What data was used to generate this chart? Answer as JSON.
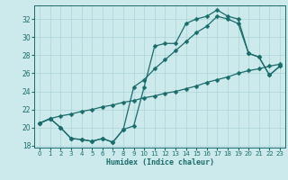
{
  "xlabel": "Humidex (Indice chaleur)",
  "bg_color": "#cce9eb",
  "grid_color": "#aad4d8",
  "line_color": "#1a6b6b",
  "xlim": [
    -0.5,
    23.5
  ],
  "ylim": [
    17.8,
    33.5
  ],
  "yticks": [
    18,
    20,
    22,
    24,
    26,
    28,
    30,
    32
  ],
  "xticks": [
    0,
    1,
    2,
    3,
    4,
    5,
    6,
    7,
    8,
    9,
    10,
    11,
    12,
    13,
    14,
    15,
    16,
    17,
    18,
    19,
    20,
    21,
    22,
    23
  ],
  "line1_x": [
    0,
    1,
    2,
    3,
    4,
    5,
    6,
    7,
    8,
    9,
    10,
    11,
    12,
    13,
    14,
    15,
    16,
    17,
    18,
    19,
    20,
    21,
    22,
    23
  ],
  "line1_y": [
    20.5,
    21.0,
    20.0,
    18.8,
    18.7,
    18.5,
    18.8,
    18.4,
    19.8,
    20.2,
    24.5,
    29.0,
    29.3,
    29.3,
    31.5,
    32.0,
    32.3,
    33.0,
    32.3,
    32.0,
    28.2,
    27.8,
    25.8,
    26.8
  ],
  "line2_x": [
    0,
    1,
    2,
    3,
    4,
    5,
    6,
    7,
    8,
    9,
    10,
    11,
    12,
    13,
    14,
    15,
    16,
    17,
    18,
    19,
    20,
    21,
    22,
    23
  ],
  "line2_y": [
    20.5,
    21.0,
    20.0,
    18.8,
    18.7,
    18.5,
    18.8,
    18.4,
    19.8,
    24.5,
    25.3,
    26.5,
    27.5,
    28.5,
    29.5,
    30.5,
    31.2,
    32.3,
    32.0,
    31.5,
    28.2,
    27.8,
    25.8,
    26.8
  ],
  "line3_x": [
    0,
    1,
    2,
    3,
    4,
    5,
    6,
    7,
    8,
    9,
    10,
    11,
    12,
    13,
    14,
    15,
    16,
    17,
    18,
    19,
    20,
    21,
    22,
    23
  ],
  "line3_y": [
    20.5,
    21.0,
    21.3,
    21.5,
    21.8,
    22.0,
    22.3,
    22.5,
    22.8,
    23.0,
    23.3,
    23.5,
    23.8,
    24.0,
    24.3,
    24.6,
    25.0,
    25.3,
    25.6,
    26.0,
    26.3,
    26.5,
    26.8,
    27.0
  ],
  "markersize": 2.5,
  "linewidth": 0.9
}
